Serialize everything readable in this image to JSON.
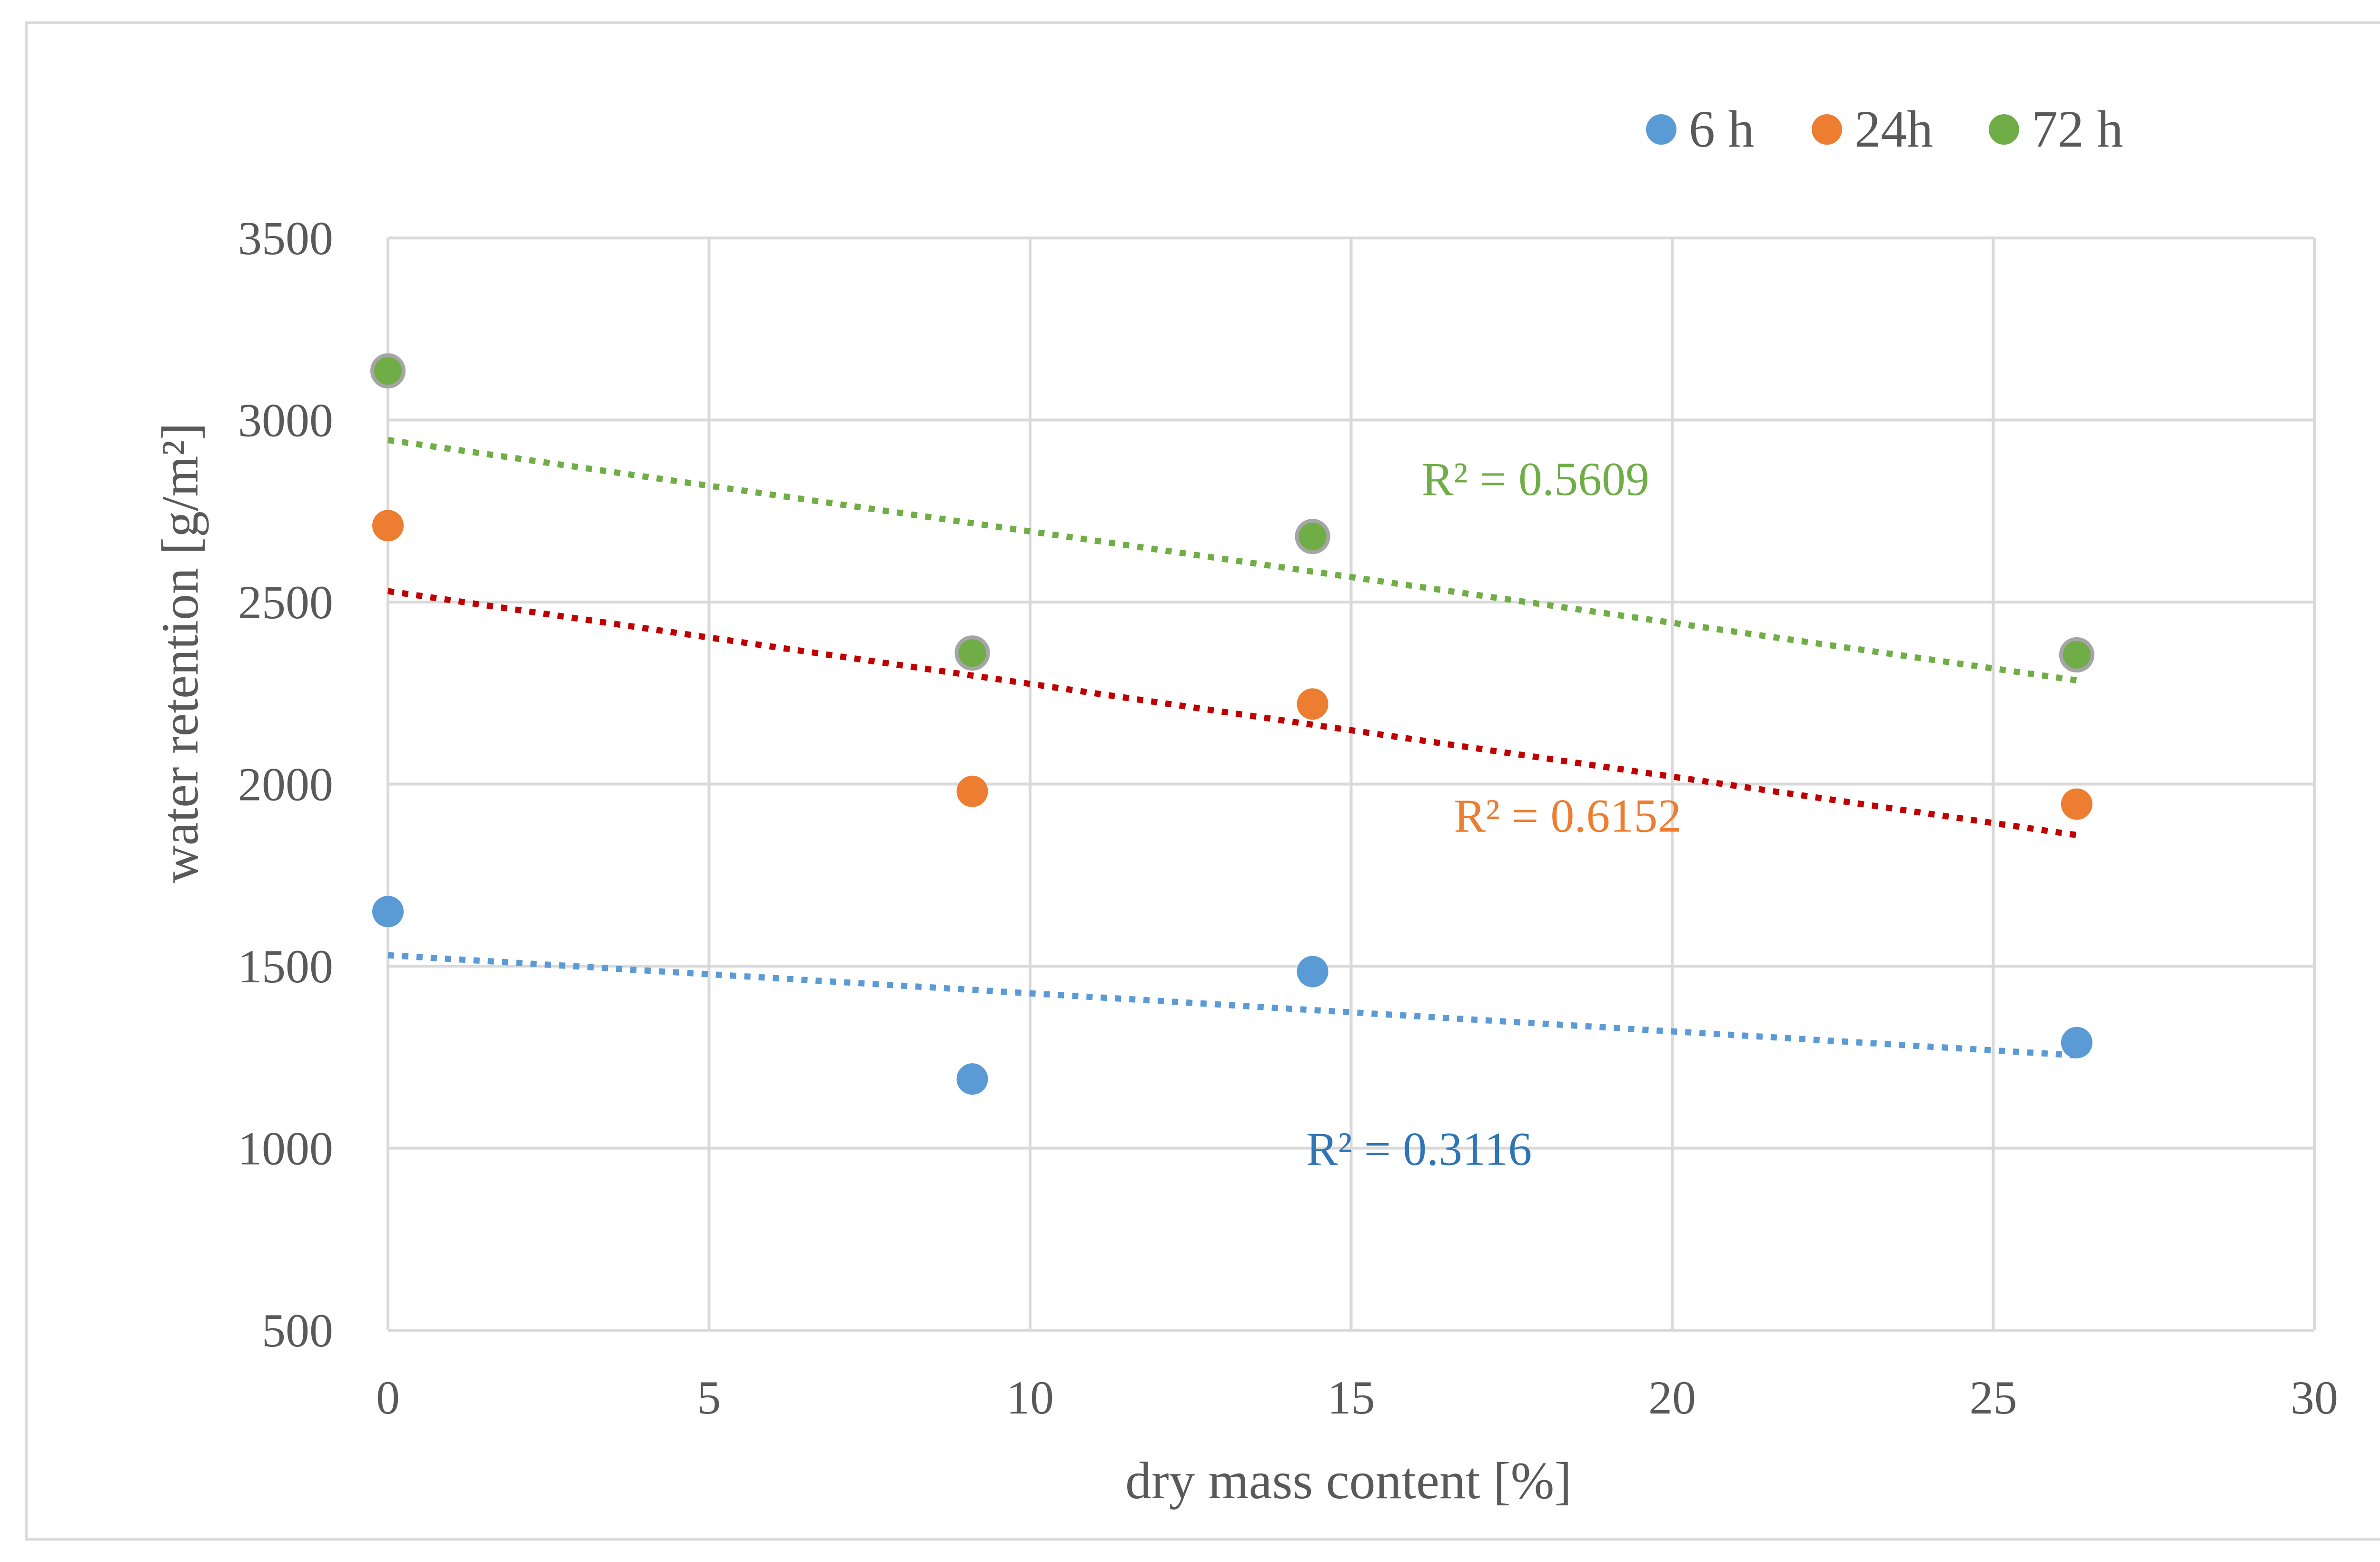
{
  "chart_data": {
    "type": "scatter",
    "title": "",
    "xlabel": "dry mass content [%]",
    "ylabel": "water retention [g/m²]",
    "xlim": [
      0,
      30
    ],
    "ylim": [
      500,
      3500
    ],
    "x_ticks": [
      0,
      5,
      10,
      15,
      20,
      25,
      30
    ],
    "y_ticks": [
      500,
      1000,
      1500,
      2000,
      2500,
      3000,
      3500
    ],
    "x_tick_labels": [
      "0",
      "5",
      "10",
      "15",
      "20",
      "25",
      "30"
    ],
    "y_tick_labels": [
      "500",
      "1000",
      "1500",
      "2000",
      "2500",
      "3000",
      "3500"
    ],
    "grid": true,
    "legend_position": "top-right",
    "series": [
      {
        "name": "6 h",
        "color": "#5b9bd5",
        "x": [
          0,
          9.1,
          14.4,
          26.3
        ],
        "y": [
          1650,
          1190,
          1485,
          1290
        ],
        "trendline": {
          "type": "linear",
          "color": "#5b9bd5",
          "x_range": [
            0,
            26.3
          ],
          "y_range": [
            1530,
            1255
          ],
          "r2_label": "R² = 0.3116",
          "r2_color": "#2e75b6"
        }
      },
      {
        "name": "24h",
        "color": "#ed7d31",
        "x": [
          0,
          9.1,
          14.4,
          26.3
        ],
        "y": [
          2710,
          1980,
          2220,
          1945
        ],
        "trendline": {
          "type": "linear",
          "color": "#c00000",
          "x_range": [
            0,
            26.3
          ],
          "y_range": [
            2530,
            1860
          ],
          "r2_label": "R² = 0.6152",
          "r2_color": "#ed7d31"
        }
      },
      {
        "name": "72 h",
        "color": "#70ad47",
        "x": [
          0,
          9.1,
          14.4,
          26.3
        ],
        "y": [
          3135,
          2360,
          2680,
          2355
        ],
        "trendline": {
          "type": "linear",
          "color": "#70ad47",
          "x_range": [
            0,
            26.3
          ],
          "y_range": [
            2945,
            2285
          ],
          "r2_label": "R² = 0.5609",
          "r2_color": "#70ad47"
        }
      }
    ],
    "r2_label_positions": [
      {
        "series": "6 h",
        "x": 14.3,
        "y": 1000
      },
      {
        "series": "24h",
        "x": 16.6,
        "y": 1915
      },
      {
        "series": "72 h",
        "x": 16.1,
        "y": 2840
      }
    ]
  },
  "colors": {
    "grid": "#d9d9d9",
    "axis_text": "#595959",
    "marker_outline": "#a5a5a5"
  }
}
